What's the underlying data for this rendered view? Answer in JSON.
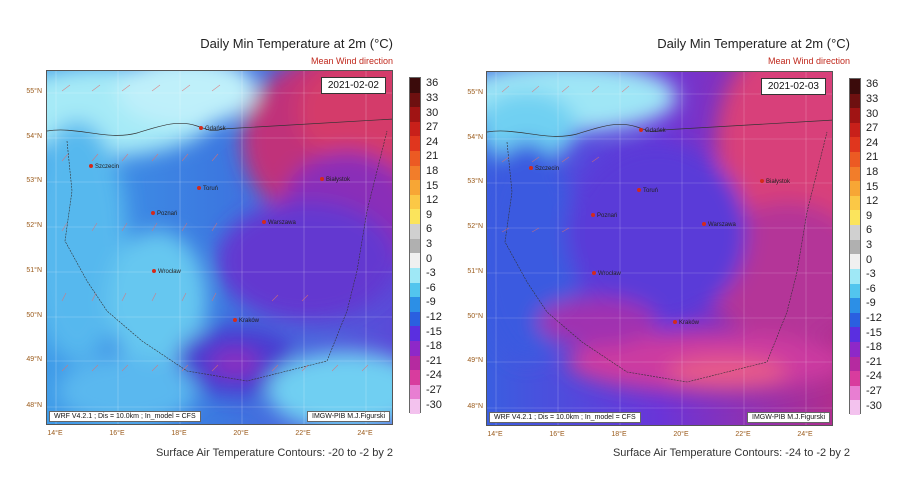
{
  "panels": [
    {
      "title": "Daily Min Temperature at 2m",
      "title_unit": "(°C)",
      "subtitle": "Mean Wind direction",
      "date": "2021-02-02",
      "footer_left": "WRF V4.2.1 ; Dis = 10.0km ; In_model = CFS",
      "footer_right": "IMGW-PIB M.J.Figurski",
      "bottom_caption": "Surface Air Temperature Contours: -20 to -2 by 2",
      "cities": [
        "Gdańsk",
        "Szczecin",
        "Toruń",
        "Białystok",
        "Poznań",
        "Warszawa",
        "Wrocław",
        "Kraków"
      ]
    },
    {
      "title": "Daily Min Temperature at 2m",
      "title_unit": "(°C)",
      "subtitle": "Mean Wind direction",
      "date": "2021-02-03",
      "footer_left": "WRF V4.2.1 ; Dis = 10.0km ; In_model = CFS",
      "footer_right": "IMGW-PIB M.J.Figurski",
      "bottom_caption": "Surface Air Temperature Contours: -24 to -2 by 2",
      "cities": [
        "Gdańsk",
        "Szczecin",
        "Toruń",
        "Białystok",
        "Poznań",
        "Warszawa",
        "Wrocław",
        "Kraków"
      ]
    }
  ],
  "lat_labels": [
    "55°N",
    "54°N",
    "53°N",
    "52°N",
    "51°N",
    "50°N",
    "49°N",
    "48°N"
  ],
  "lon_labels": [
    "14°E",
    "16°E",
    "18°E",
    "20°E",
    "22°E",
    "24°E"
  ],
  "colorbar": {
    "labels": [
      "36",
      "33",
      "30",
      "27",
      "24",
      "21",
      "18",
      "15",
      "12",
      "9",
      "6",
      "3",
      "0",
      "-3",
      "-6",
      "-9",
      "-12",
      "-15",
      "-18",
      "-21",
      "-24",
      "-27",
      "-30"
    ],
    "colors": [
      "#3b0b0b",
      "#6e1010",
      "#a01414",
      "#c8201a",
      "#e0361e",
      "#ec5a23",
      "#f27d2a",
      "#f7a635",
      "#fbc846",
      "#fbe45c",
      "#d0d0d0",
      "#b0b0b0",
      "#f0f0f0",
      "#9fe8f6",
      "#52c5ee",
      "#2c8fe6",
      "#2a5fe0",
      "#5a2fe0",
      "#8e28c8",
      "#b52aa0",
      "#d83c9e",
      "#e87ed2",
      "#f3c2ee"
    ]
  }
}
